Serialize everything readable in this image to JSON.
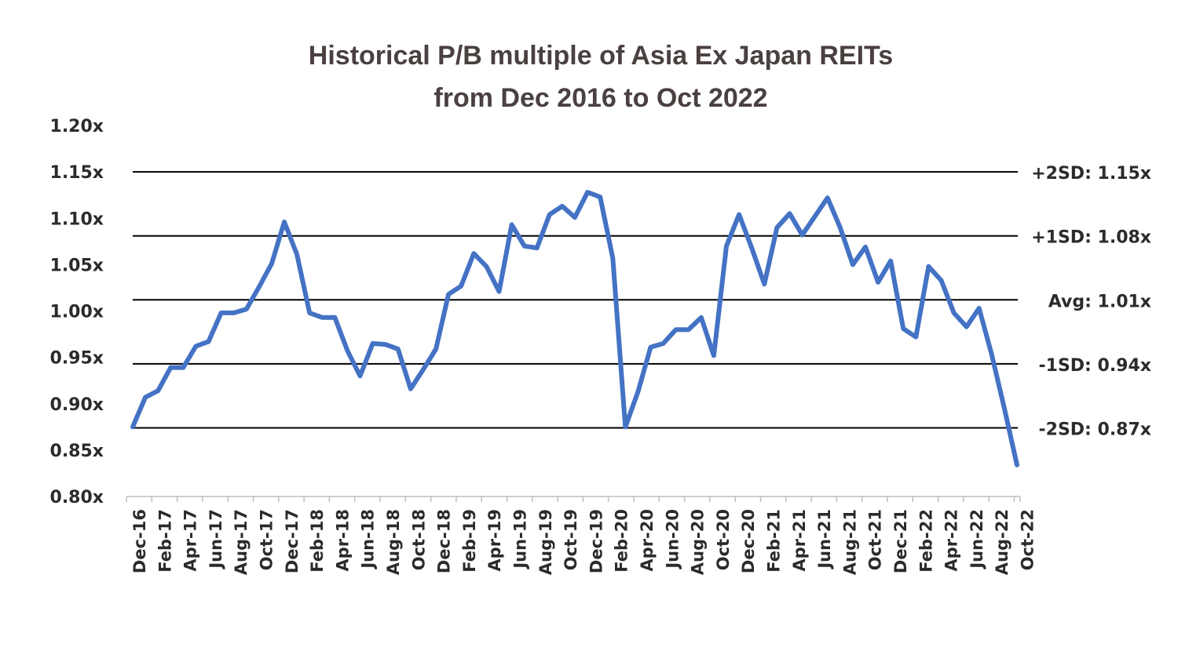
{
  "colors": {
    "series": "#4472c4",
    "reference_lines": "#000000",
    "title": "#4a4040",
    "text": "#2b2b2b",
    "axis": "#bfbfbf"
  },
  "chart_data": {
    "type": "line",
    "title_line1": "Historical P/B multiple of Asia Ex Japan REITs",
    "title_line2": "from Dec 2016 to Oct 2022",
    "xlabel": "",
    "ylabel": "",
    "ylim": [
      0.8,
      1.2
    ],
    "yticks": [
      0.8,
      0.85,
      0.9,
      0.95,
      1.0,
      1.05,
      1.1,
      1.15,
      1.2
    ],
    "ytick_labels": [
      "0.80x",
      "0.85x",
      "0.90x",
      "0.95x",
      "1.00x",
      "1.05x",
      "1.10x",
      "1.15x",
      "1.20x"
    ],
    "grid": false,
    "x_tick_labels": [
      "Dec-16",
      "Feb-17",
      "Apr-17",
      "Jun-17",
      "Aug-17",
      "Oct-17",
      "Dec-17",
      "Feb-18",
      "Apr-18",
      "Jun-18",
      "Aug-18",
      "Oct-18",
      "Dec-18",
      "Feb-19",
      "Apr-19",
      "Jun-19",
      "Aug-19",
      "Oct-19",
      "Dec-19",
      "Feb-20",
      "Apr-20",
      "Jun-20",
      "Aug-20",
      "Oct-20",
      "Dec-20",
      "Feb-21",
      "Apr-21",
      "Jun-21",
      "Aug-21",
      "Oct-21",
      "Dec-21",
      "Feb-22",
      "Apr-22",
      "Jun-22",
      "Aug-22",
      "Oct-22"
    ],
    "x": [
      "Dec-16",
      "Jan-17",
      "Feb-17",
      "Mar-17",
      "Apr-17",
      "May-17",
      "Jun-17",
      "Jul-17",
      "Aug-17",
      "Sep-17",
      "Oct-17",
      "Nov-17",
      "Dec-17",
      "Jan-18",
      "Feb-18",
      "Mar-18",
      "Apr-18",
      "May-18",
      "Jun-18",
      "Jul-18",
      "Aug-18",
      "Sep-18",
      "Oct-18",
      "Nov-18",
      "Dec-18",
      "Jan-19",
      "Feb-19",
      "Mar-19",
      "Apr-19",
      "May-19",
      "Jun-19",
      "Jul-19",
      "Aug-19",
      "Sep-19",
      "Oct-19",
      "Nov-19",
      "Dec-19",
      "Jan-20",
      "Feb-20",
      "Mar-20",
      "Apr-20",
      "May-20",
      "Jun-20",
      "Jul-20",
      "Aug-20",
      "Sep-20",
      "Oct-20",
      "Nov-20",
      "Dec-20",
      "Jan-21",
      "Feb-21",
      "Mar-21",
      "Apr-21",
      "May-21",
      "Jun-21",
      "Jul-21",
      "Aug-21",
      "Sep-21",
      "Oct-21",
      "Nov-21",
      "Dec-21",
      "Jan-22",
      "Feb-22",
      "Mar-22",
      "Apr-22",
      "May-22",
      "Jun-22",
      "Jul-22",
      "Aug-22",
      "Sep-22",
      "Oct-22"
    ],
    "series": [
      {
        "values": [
          0.875,
          0.907,
          0.914,
          0.939,
          0.939,
          0.962,
          0.967,
          0.998,
          0.998,
          1.002,
          1.026,
          1.051,
          1.096,
          1.061,
          0.998,
          0.993,
          0.993,
          0.957,
          0.93,
          0.965,
          0.964,
          0.959,
          0.916,
          0.937,
          0.959,
          1.018,
          1.027,
          1.062,
          1.048,
          1.021,
          1.093,
          1.07,
          1.068,
          1.104,
          1.113,
          1.101,
          1.128,
          1.123,
          1.057,
          0.875,
          0.913,
          0.961,
          0.965,
          0.98,
          0.98,
          0.993,
          0.952,
          1.07,
          1.104,
          1.068,
          1.029,
          1.09,
          1.105,
          1.082,
          1.102,
          1.122,
          1.09,
          1.05,
          1.069,
          1.031,
          1.054,
          0.981,
          0.972,
          1.048,
          1.033,
          0.998,
          0.983,
          1.003,
          0.953,
          0.895,
          0.834
        ]
      }
    ],
    "reference_lines": [
      {
        "label": "+2SD: 1.15x",
        "value": 1.15
      },
      {
        "label": "+1SD: 1.08x",
        "value": 1.081
      },
      {
        "label": "Avg: 1.01x",
        "value": 1.012
      },
      {
        "label": "-1SD: 0.94x",
        "value": 0.943
      },
      {
        "label": "-2SD: 0.87x",
        "value": 0.874
      }
    ]
  }
}
